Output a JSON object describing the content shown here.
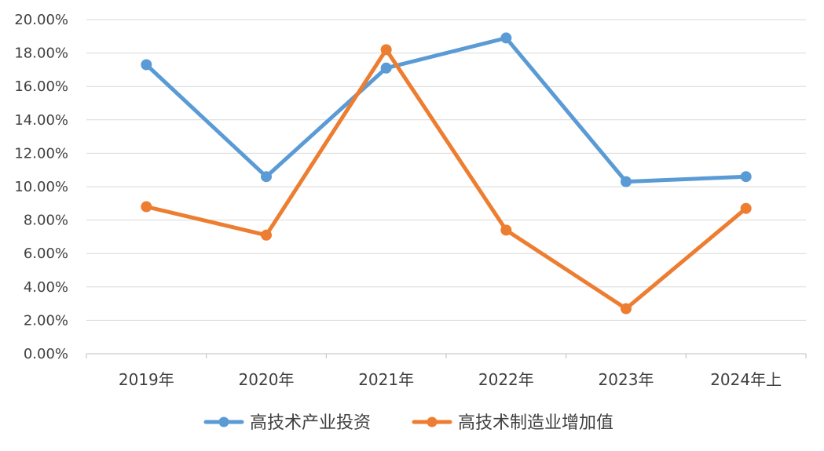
{
  "chart_data": {
    "type": "line",
    "categories": [
      "2019年",
      "2020年",
      "2021年",
      "2022年",
      "2023年",
      "2024年上"
    ],
    "y_ticks": [
      "0.00%",
      "2.00%",
      "4.00%",
      "6.00%",
      "8.00%",
      "10.00%",
      "12.00%",
      "14.00%",
      "16.00%",
      "18.00%",
      "20.00%"
    ],
    "ylim": [
      0,
      20
    ],
    "y_unit": "%",
    "grid": "horizontal",
    "legend_position": "bottom",
    "series": [
      {
        "name": "高技术产业投资",
        "color": "#5B9BD5",
        "values": [
          17.3,
          10.6,
          17.1,
          18.9,
          10.3,
          10.6
        ]
      },
      {
        "name": "高技术制造业增加值",
        "color": "#ED7D31",
        "values": [
          8.8,
          7.1,
          18.2,
          7.4,
          2.7,
          8.7
        ]
      }
    ]
  }
}
